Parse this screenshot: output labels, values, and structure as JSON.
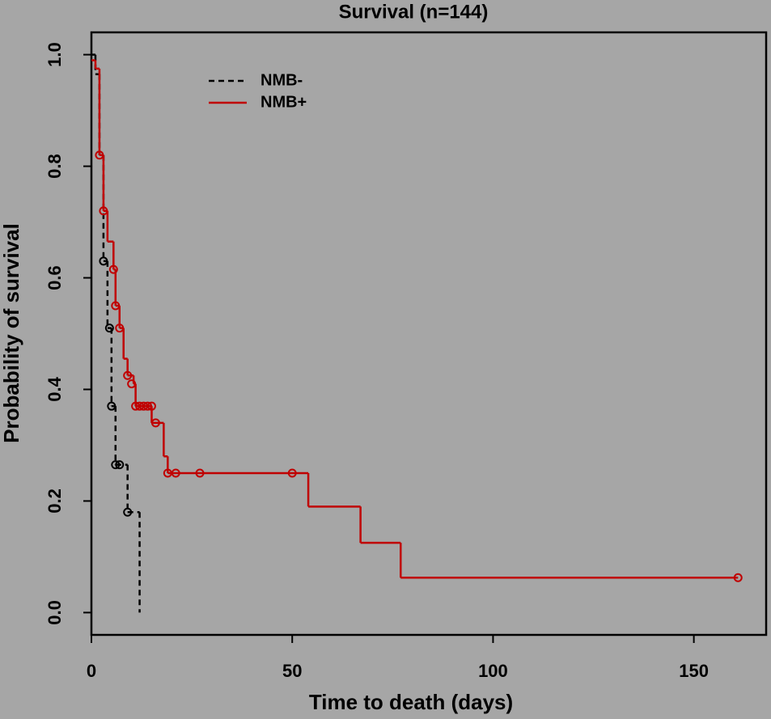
{
  "chart_data": {
    "type": "survival-step",
    "title": "Survival (n=144)",
    "x_label": "Time to death (days)",
    "y_label": "Probability of survival",
    "xlim": [
      0,
      168
    ],
    "ylim": [
      -0.04,
      1.04
    ],
    "xticks": [
      0,
      50,
      100,
      150
    ],
    "yticks": [
      {
        "value": 0,
        "label": "0.0"
      },
      0.2,
      0.4,
      0.6,
      0.8,
      {
        "value": 1,
        "label": "1.0"
      }
    ],
    "legend": "top-left",
    "series": [
      {
        "name": "NMB-",
        "color": "#000000",
        "dash": true,
        "x": [
          0,
          1,
          2,
          3,
          4,
          5,
          6,
          9,
          12
        ],
        "values": [
          1.0,
          0.965,
          0.82,
          0.63,
          0.51,
          0.37,
          0.265,
          0.18,
          0
        ],
        "censor_x": [
          3,
          4.5,
          5,
          6,
          7,
          9
        ],
        "censor_y": [
          0.63,
          0.51,
          0.37,
          0.265,
          0.265,
          0.18
        ]
      },
      {
        "name": "NMB+",
        "color": "#c00000",
        "dash": false,
        "x": [
          0,
          1,
          2,
          3,
          4,
          5.5,
          6,
          7,
          8,
          9,
          10.5,
          11,
          15,
          18,
          19,
          54,
          67,
          77,
          161
        ],
        "values": [
          0.99,
          0.975,
          0.82,
          0.72,
          0.665,
          0.615,
          0.55,
          0.51,
          0.455,
          0.425,
          0.41,
          0.37,
          0.34,
          0.28,
          0.25,
          0.19,
          0.125,
          0.0625,
          0.0625
        ],
        "censor_x": [
          2,
          3,
          5.5,
          6,
          7,
          9,
          10,
          11,
          12,
          13,
          14,
          15,
          16,
          19,
          21,
          27,
          50,
          161
        ],
        "censor_y": [
          0.82,
          0.72,
          0.615,
          0.55,
          0.51,
          0.425,
          0.41,
          0.37,
          0.37,
          0.37,
          0.37,
          0.37,
          0.34,
          0.25,
          0.25,
          0.25,
          0.25,
          0.0625
        ]
      }
    ]
  }
}
